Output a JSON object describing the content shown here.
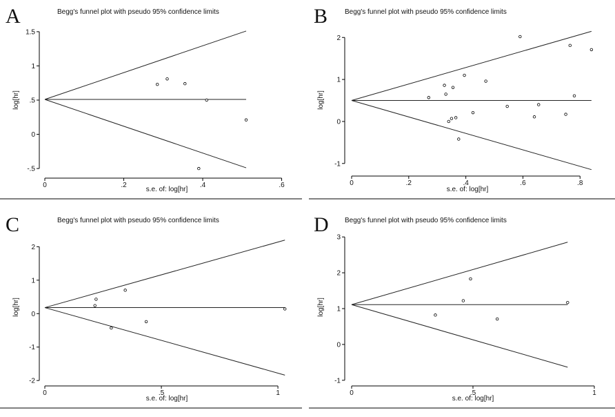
{
  "figure": {
    "panels": [
      "A",
      "B",
      "C",
      "D"
    ]
  },
  "chart_data": [
    {
      "panel": "A",
      "type": "scatter",
      "title": "Begg's funnel plot with pseudo 95% confidence limits",
      "xlabel": "s.e. of: log[hr]",
      "ylabel": "log[hr]",
      "xlim": [
        0,
        0.62
      ],
      "ylim": [
        -0.6,
        1.6
      ],
      "xticks": [
        0,
        0.2,
        0.4,
        0.6
      ],
      "xtick_labels": [
        "0",
        ".2",
        ".4",
        ".6"
      ],
      "yticks": [
        -0.5,
        0,
        0.5,
        1,
        1.5
      ],
      "ytick_labels": [
        "-.5",
        "0",
        ".5",
        "1",
        "1.5"
      ],
      "pooled_estimate": 0.51,
      "funnel_max_se": 0.51,
      "points": [
        {
          "x": 0.285,
          "y": 0.73
        },
        {
          "x": 0.31,
          "y": 0.81
        },
        {
          "x": 0.355,
          "y": 0.74
        },
        {
          "x": 0.39,
          "y": -0.5
        },
        {
          "x": 0.41,
          "y": 0.5
        },
        {
          "x": 0.51,
          "y": 0.21
        }
      ]
    },
    {
      "panel": "B",
      "type": "scatter",
      "title": "Begg's funnel plot with pseudo 95% confidence limits",
      "xlabel": "s.e. of: log[hr]",
      "ylabel": "log[hr]",
      "xlim": [
        0,
        0.85
      ],
      "ylim": [
        -1.25,
        2.3
      ],
      "xticks": [
        0,
        0.2,
        0.4,
        0.6,
        0.8
      ],
      "xtick_labels": [
        "0",
        ".2",
        ".4",
        ".6",
        ".8"
      ],
      "yticks": [
        -1,
        0,
        1,
        2
      ],
      "ytick_labels": [
        "-1",
        "0",
        "1",
        "2"
      ],
      "pooled_estimate": 0.5,
      "funnel_max_se": 0.84,
      "points": [
        {
          "x": 0.27,
          "y": 0.57
        },
        {
          "x": 0.325,
          "y": 0.86
        },
        {
          "x": 0.33,
          "y": 0.65
        },
        {
          "x": 0.34,
          "y": 0.0
        },
        {
          "x": 0.35,
          "y": 0.07
        },
        {
          "x": 0.355,
          "y": 0.81
        },
        {
          "x": 0.365,
          "y": 0.09
        },
        {
          "x": 0.375,
          "y": -0.42
        },
        {
          "x": 0.395,
          "y": 1.1
        },
        {
          "x": 0.425,
          "y": 0.21
        },
        {
          "x": 0.47,
          "y": 0.96
        },
        {
          "x": 0.545,
          "y": 0.36
        },
        {
          "x": 0.59,
          "y": 2.02
        },
        {
          "x": 0.64,
          "y": 0.11
        },
        {
          "x": 0.655,
          "y": 0.4
        },
        {
          "x": 0.75,
          "y": 0.17
        },
        {
          "x": 0.765,
          "y": 1.81
        },
        {
          "x": 0.78,
          "y": 0.61
        },
        {
          "x": 0.84,
          "y": 1.71
        }
      ]
    },
    {
      "panel": "C",
      "type": "scatter",
      "title": "Begg's funnel plot with pseudo 95% confidence limits",
      "xlabel": "s.e. of: log[hr]",
      "ylabel": "log[hr]",
      "xlim": [
        0,
        1.05
      ],
      "ylim": [
        -2.1,
        2.4
      ],
      "xticks": [
        0,
        0.5,
        1
      ],
      "xtick_labels": [
        "0",
        ".5",
        "1"
      ],
      "yticks": [
        -2,
        -1,
        0,
        1,
        2
      ],
      "ytick_labels": [
        "-2",
        "-1",
        "0",
        "1",
        "2"
      ],
      "pooled_estimate": 0.18,
      "funnel_max_se": 1.03,
      "points": [
        {
          "x": 0.215,
          "y": 0.24
        },
        {
          "x": 0.22,
          "y": 0.43
        },
        {
          "x": 0.285,
          "y": -0.43
        },
        {
          "x": 0.345,
          "y": 0.7
        },
        {
          "x": 0.435,
          "y": -0.24
        },
        {
          "x": 1.03,
          "y": 0.14
        }
      ]
    },
    {
      "panel": "D",
      "type": "scatter",
      "title": "Begg's funnel plot with pseudo 95% confidence limits",
      "xlabel": "s.e. of: log[hr]",
      "ylabel": "log[hr]",
      "xlim": [
        0,
        1.0
      ],
      "ylim": [
        -1.1,
        3.1
      ],
      "xticks": [
        0,
        0.5,
        1
      ],
      "xtick_labels": [
        "0",
        ".5",
        "1"
      ],
      "yticks": [
        -1,
        0,
        1,
        2,
        3
      ],
      "ytick_labels": [
        "-1",
        "0",
        "1",
        "2",
        "3"
      ],
      "pooled_estimate": 1.11,
      "funnel_max_se": 0.89,
      "points": [
        {
          "x": 0.345,
          "y": 0.82
        },
        {
          "x": 0.46,
          "y": 1.22
        },
        {
          "x": 0.49,
          "y": 1.83
        },
        {
          "x": 0.6,
          "y": 0.71
        },
        {
          "x": 0.89,
          "y": 1.17
        }
      ]
    }
  ]
}
